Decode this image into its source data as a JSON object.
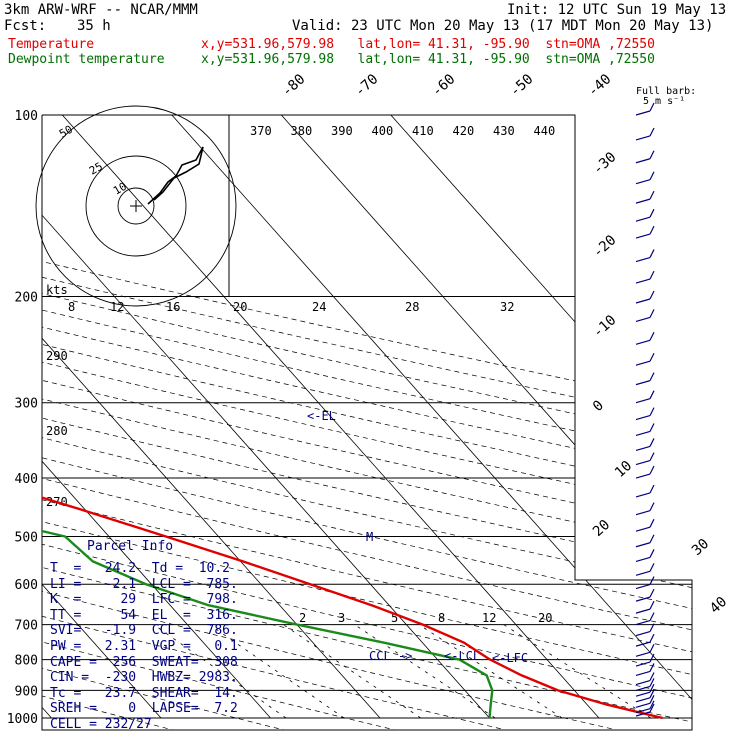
{
  "header": {
    "model": "3km ARW-WRF -- NCAR/MMM",
    "init": "Init: 12 UTC Sun 19 May 13",
    "fcst_label": "Fcst:",
    "fcst_value": "35 h",
    "valid": "Valid: 23 UTC Mon 20 May 13 (17 MDT Mon 20 May 13)",
    "temp_label": "Temperature",
    "dew_label": "Dewpoint temperature",
    "temp_info": "x,y=531.96,579.98   lat,lon= 41.31, -95.90  stn=OMA ,72550",
    "dew_info": "x,y=531.96,579.98   lat,lon= 41.31, -95.90  stn=OMA ,72550"
  },
  "colors": {
    "temperature": "#e00000",
    "dewpoint": "#1a8a1a",
    "parcel_info": "#000080",
    "grid": "#000000"
  },
  "chart_data": {
    "type": "line",
    "title": "",
    "xlabel": "",
    "ylabel": "",
    "y_scale": "log (pressure, hPa)",
    "pressure_ticks": [
      100,
      200,
      300,
      400,
      500,
      600,
      700,
      800,
      900,
      1000
    ],
    "temperature_ticks": [
      -80,
      -70,
      -60,
      -50,
      -40,
      -30,
      -20,
      -10,
      0,
      10,
      20,
      30,
      40
    ],
    "theta_e_labels": [
      370,
      380,
      390,
      400,
      410,
      420,
      430,
      440
    ],
    "theta_left_labels": [
      290,
      280,
      270
    ],
    "mixing_ratio_labels": [
      2,
      3,
      5,
      8,
      12,
      20
    ],
    "hodo_speed_labels": [
      8,
      12,
      16,
      20,
      24,
      28,
      32
    ],
    "hodo_ring_labels": [
      50,
      25,
      10
    ],
    "hodo_unit": "kts",
    "barb_legend": {
      "title": "Full barb:",
      "value": "5 m s⁻¹"
    },
    "series": [
      {
        "name": "Temperature",
        "points": [
          [
            1000,
            25.8
          ],
          [
            950,
            21.8
          ],
          [
            900,
            18.5
          ],
          [
            850,
            16.4
          ],
          [
            800,
            14.8
          ],
          [
            750,
            13.8
          ],
          [
            700,
            11.5
          ],
          [
            650,
            8.4
          ],
          [
            600,
            4.5
          ],
          [
            550,
            0.2
          ],
          [
            500,
            -4.8
          ],
          [
            450,
            -10.5
          ],
          [
            400,
            -17.2
          ],
          [
            350,
            -25.1
          ],
          [
            300,
            -34.0
          ],
          [
            275,
            -38.5
          ],
          [
            250,
            -42.4
          ],
          [
            200,
            -50.5
          ],
          [
            175,
            -55.5
          ],
          [
            150,
            -59.2
          ],
          [
            125,
            -60.6
          ],
          [
            100,
            -60.5
          ]
        ]
      },
      {
        "name": "Dewpoint temperature",
        "points": [
          [
            1000,
            10.0
          ],
          [
            950,
            11.2
          ],
          [
            900,
            12.5
          ],
          [
            850,
            13.2
          ],
          [
            800,
            12.0
          ],
          [
            750,
            6.5
          ],
          [
            700,
            0.0
          ],
          [
            650,
            -6.5
          ],
          [
            600,
            -10.5
          ],
          [
            550,
            -13.5
          ],
          [
            500,
            -14.0
          ],
          [
            450,
            -22.5
          ],
          [
            400,
            -23.0
          ],
          [
            350,
            -29.0
          ],
          [
            300,
            -38.0
          ],
          [
            275,
            -45.0
          ],
          [
            250,
            -50.0
          ],
          [
            200,
            -55.5
          ],
          [
            175,
            -60.0
          ],
          [
            150,
            -66.0
          ],
          [
            125,
            -68.0
          ],
          [
            100,
            -67.5
          ]
        ]
      }
    ],
    "level_markers": [
      {
        "label": "<-EL",
        "pressure": 316
      },
      {
        "label": "M",
        "pressure": 500
      },
      {
        "label": "CCL ->",
        "pressure": 786
      },
      {
        "label": "<-LCL",
        "pressure": 785
      },
      {
        "label": "<-LFC",
        "pressure": 798
      }
    ],
    "wind_barbs_levels": [
      100,
      110,
      120,
      130,
      140,
      150,
      160,
      175,
      190,
      205,
      220,
      240,
      260,
      280,
      300,
      320,
      340,
      360,
      380,
      400,
      430,
      460,
      490,
      520,
      550,
      580,
      610,
      640,
      670,
      700,
      730,
      760,
      790,
      820,
      850,
      880,
      900,
      920,
      940,
      960,
      980,
      1000
    ]
  },
  "parcel_info": {
    "title": "Parcel Info",
    "rows": [
      "T  =   24.2  Td =  10.2",
      "LI =   -2.1  LCL =  785.",
      "K  =     29  LFC =  798.",
      "TT =     54  EL  =  316.",
      "SVI=   -1.9  CCL =  786.",
      "PW =   2.31  VGP =   0.1",
      "CAPE =  256  SWEAT=  308",
      "CIN =  -230  HWBZ= 2983.",
      "Tc =   23.7  SHEAR=  14.",
      "SREH =    0  LAPSE=  7.2",
      "CELL = 232/27"
    ]
  }
}
